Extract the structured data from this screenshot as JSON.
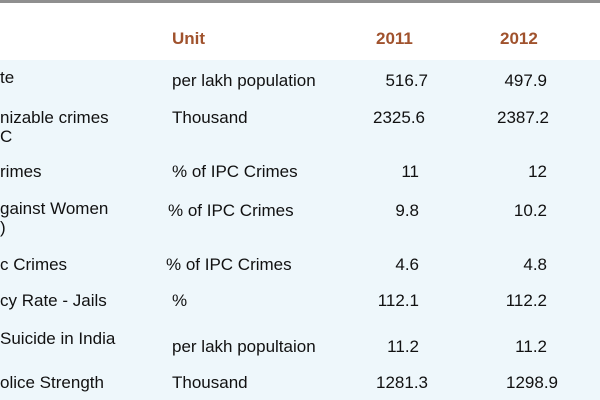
{
  "table": {
    "headers": {
      "unit": "Unit",
      "year1": "2011",
      "year2": "2012"
    },
    "rows": [
      {
        "indicator": "te",
        "unit": "per lakh population",
        "y2011": "516.7",
        "y2012": "497.9"
      },
      {
        "indicator": "nizable crimes\nC",
        "unit": "Thousand",
        "y2011": "2325.6",
        "y2012": "2387.2"
      },
      {
        "indicator": "rimes",
        "unit": "% of IPC Crimes",
        "y2011": "11",
        "y2012": "12"
      },
      {
        "indicator": "gainst Women\n)",
        "unit": "% of IPC Crimes",
        "y2011": "9.8",
        "y2012": "10.2"
      },
      {
        "indicator": "c Crimes",
        "unit": "% of IPC Crimes",
        "y2011": "4.6",
        "y2012": "4.8"
      },
      {
        "indicator": "cy Rate - Jails",
        "unit": "%",
        "y2011": "112.1",
        "y2012": "112.2"
      },
      {
        "indicator": "Suicide in India",
        "unit": "per lakh popultaion",
        "y2011": "11.2",
        "y2012": "11.2"
      },
      {
        "indicator": "olice Strength",
        "unit": "Thousand",
        "y2011": "1281.3",
        "y2012": "1298.9"
      }
    ]
  }
}
